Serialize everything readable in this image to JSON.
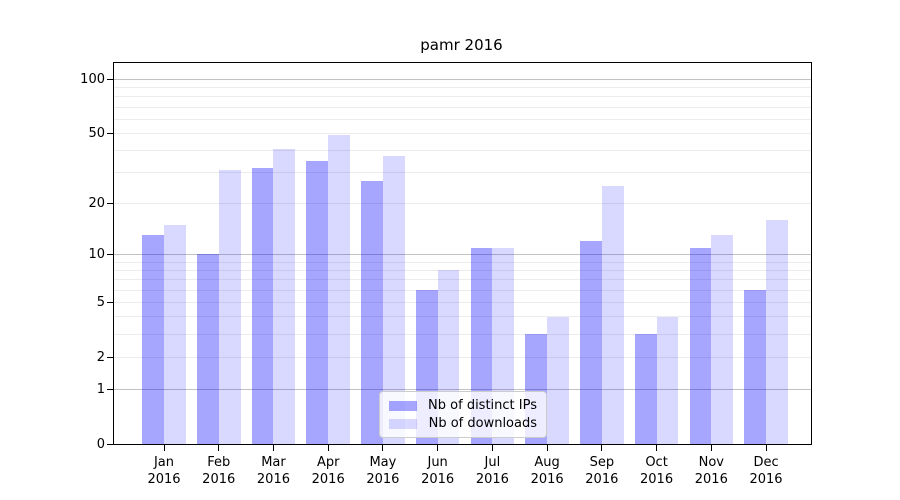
{
  "chart_data": {
    "type": "bar",
    "title": "pamr 2016",
    "categories": [
      "Jan",
      "Feb",
      "Mar",
      "Apr",
      "May",
      "Jun",
      "Jul",
      "Aug",
      "Sep",
      "Oct",
      "Nov",
      "Dec"
    ],
    "year": "2016",
    "series": [
      {
        "name": "Nb of distinct IPs",
        "color": "rgba(0,0,255,0.35)",
        "values": [
          13,
          10,
          32,
          35,
          27,
          6,
          11,
          3,
          12,
          3,
          11,
          6
        ]
      },
      {
        "name": "Nb of downloads",
        "color": "rgba(0,0,255,0.15)",
        "values": [
          15,
          31,
          41,
          49,
          37,
          8,
          11,
          4,
          25,
          4,
          13,
          16
        ]
      }
    ],
    "y_axis": {
      "scale": "log10(1+v)",
      "tick_values": [
        100,
        50,
        20,
        10,
        5,
        2,
        1,
        0
      ],
      "tick_labels": [
        "100",
        "50",
        "20",
        "10",
        "5",
        "2",
        "1",
        "0"
      ],
      "major_gridlines": [
        1,
        10,
        100
      ],
      "minor_gridlines": [
        2,
        3,
        4,
        5,
        6,
        7,
        8,
        9,
        20,
        30,
        40,
        50,
        60,
        70,
        80,
        90
      ],
      "ylim": [
        0,
        123
      ]
    },
    "legend_position": "lower center",
    "grid": true,
    "colors": {
      "grid_minor": "#ececec",
      "grid_major": "#c2c2c2",
      "axis": "#000000",
      "background": "#ffffff"
    }
  }
}
